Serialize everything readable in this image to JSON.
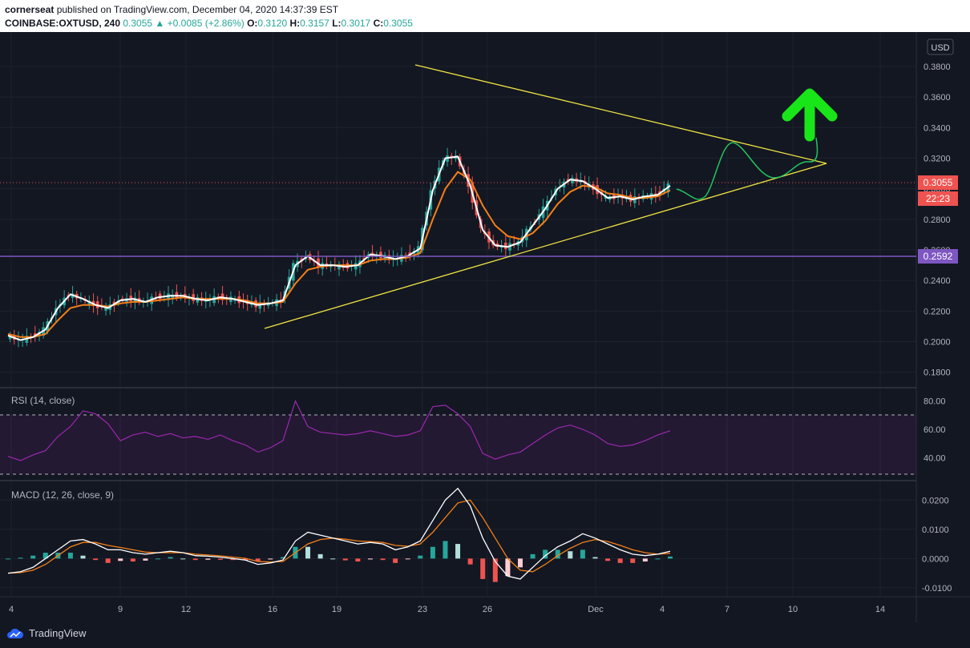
{
  "header": {
    "publisher": "cornerseat",
    "published_text": " published on TradingView.com, December 04, 2020 14:37:39 EST",
    "symbol": "COINBASE:OXTUSD, 240",
    "last": "0.3055",
    "change": "+0.0085 (+2.86%)",
    "o_label": "O:",
    "o": "0.3120",
    "h_label": "H:",
    "h": "0.3157",
    "l_label": "L:",
    "l": "0.3017",
    "c_label": "C:",
    "c": "0.3055"
  },
  "footer": {
    "brand": "TradingView"
  },
  "colors": {
    "background": "#131722",
    "up": "#26a69a",
    "down": "#ef5350",
    "ema_fast": "#ffffff",
    "ema_slow": "#f57f17",
    "triangle": "#f0e442",
    "projection": "#22c55e",
    "arrow": "#19e619",
    "support_line": "#7e57c2",
    "rsi": "#9c27b0",
    "price_tag": "#ef5350"
  },
  "chart_data": [
    {
      "type": "line",
      "panel": "price",
      "currency": "USD",
      "x_ticks": [
        "4",
        "9",
        "12",
        "16",
        "19",
        "23",
        "26",
        "Dec",
        "4",
        "7",
        "10",
        "14"
      ],
      "y_ticks": [
        "0.3800",
        "0.3600",
        "0.3400",
        "0.3200",
        "0.3000",
        "0.2800",
        "0.2600",
        "0.2400",
        "0.2200",
        "0.2000",
        "0.1800"
      ],
      "ylim": [
        0.172,
        0.392
      ],
      "last_price_tag": "0.3055",
      "countdown_tag": "22:23",
      "support_tag": "0.2592",
      "support_level": 0.2592,
      "series": [
        {
          "values": [
            0.204,
            0.201,
            0.203,
            0.208,
            0.222,
            0.231,
            0.228,
            0.224,
            0.222,
            0.227,
            0.228,
            0.226,
            0.229,
            0.23,
            0.23,
            0.228,
            0.227,
            0.229,
            0.228,
            0.226,
            0.224,
            0.225,
            0.227,
            0.25,
            0.256,
            0.25,
            0.25,
            0.249,
            0.25,
            0.257,
            0.256,
            0.254,
            0.256,
            0.261,
            0.299,
            0.32,
            0.321,
            0.302,
            0.273,
            0.263,
            0.262,
            0.265,
            0.276,
            0.287,
            0.3,
            0.306,
            0.305,
            0.3,
            0.294,
            0.295,
            0.293,
            0.295,
            0.296,
            0.302
          ]
        },
        {
          "values": [
            0.205,
            0.203,
            0.203,
            0.205,
            0.214,
            0.222,
            0.224,
            0.224,
            0.223,
            0.225,
            0.226,
            0.226,
            0.227,
            0.228,
            0.229,
            0.228,
            0.228,
            0.228,
            0.228,
            0.227,
            0.225,
            0.225,
            0.226,
            0.238,
            0.247,
            0.249,
            0.25,
            0.25,
            0.25,
            0.253,
            0.254,
            0.254,
            0.255,
            0.258,
            0.28,
            0.3,
            0.311,
            0.306,
            0.289,
            0.276,
            0.269,
            0.267,
            0.271,
            0.279,
            0.29,
            0.298,
            0.302,
            0.301,
            0.297,
            0.296,
            0.294,
            0.294,
            0.295,
            0.299
          ]
        }
      ],
      "annotations": {
        "triangle_upper": [
          [
            0,
            0.378
          ],
          [
            1,
            0.317
          ]
        ],
        "triangle_lower": [
          [
            0,
            0.213
          ],
          [
            1,
            0.317
          ]
        ],
        "projection": "curve",
        "arrow": "up"
      }
    },
    {
      "type": "line",
      "panel": "rsi",
      "title": "RSI (14, close)",
      "y_ticks": [
        "80.00",
        "60.00",
        "40.00"
      ],
      "ylim": [
        25,
        86
      ],
      "bands": [
        30,
        70
      ],
      "series": [
        {
          "values": [
            41,
            38,
            42,
            45,
            55,
            62,
            73,
            71,
            64,
            52,
            56,
            58,
            55,
            57,
            54,
            55,
            53,
            56,
            52,
            49,
            44,
            47,
            52,
            80,
            62,
            58,
            57,
            56,
            57,
            59,
            57,
            55,
            56,
            59,
            76,
            77,
            71,
            62,
            43,
            39,
            42,
            44,
            50,
            56,
            61,
            63,
            60,
            56,
            50,
            48,
            49,
            52,
            56,
            59
          ]
        }
      ]
    },
    {
      "type": "bar",
      "panel": "macd",
      "title": "MACD (12, 26, close, 9)",
      "y_ticks": [
        "0.0200",
        "0.0100",
        "0.0000",
        "-0.0100"
      ],
      "ylim": [
        -0.0125,
        0.025
      ],
      "macd": [
        -0.005,
        -0.0045,
        -0.003,
        0.0,
        0.003,
        0.006,
        0.0065,
        0.005,
        0.003,
        0.003,
        0.002,
        0.0015,
        0.002,
        0.0025,
        0.002,
        0.001,
        0.0008,
        0.0005,
        0.0,
        -0.0005,
        -0.002,
        -0.0015,
        -0.0005,
        0.006,
        0.009,
        0.008,
        0.007,
        0.006,
        0.005,
        0.0055,
        0.005,
        0.003,
        0.004,
        0.006,
        0.013,
        0.02,
        0.024,
        0.018,
        0.007,
        -0.001,
        -0.006,
        -0.007,
        -0.003,
        0.001,
        0.004,
        0.006,
        0.0085,
        0.007,
        0.005,
        0.003,
        0.0015,
        0.001,
        0.0015,
        0.0025
      ],
      "signal": [
        -0.005,
        -0.0048,
        -0.004,
        -0.002,
        0.001,
        0.004,
        0.0055,
        0.0055,
        0.0045,
        0.0038,
        0.003,
        0.0022,
        0.002,
        0.002,
        0.002,
        0.0015,
        0.0012,
        0.0009,
        0.0005,
        0.0001,
        -0.001,
        -0.0012,
        -0.001,
        0.002,
        0.005,
        0.0065,
        0.007,
        0.0066,
        0.006,
        0.0058,
        0.0055,
        0.0045,
        0.0042,
        0.005,
        0.009,
        0.014,
        0.019,
        0.02,
        0.014,
        0.007,
        0.0,
        -0.004,
        -0.0045,
        -0.002,
        0.001,
        0.0035,
        0.0055,
        0.0065,
        0.0058,
        0.0045,
        0.003,
        0.002,
        0.0015,
        0.0018
      ]
    }
  ]
}
